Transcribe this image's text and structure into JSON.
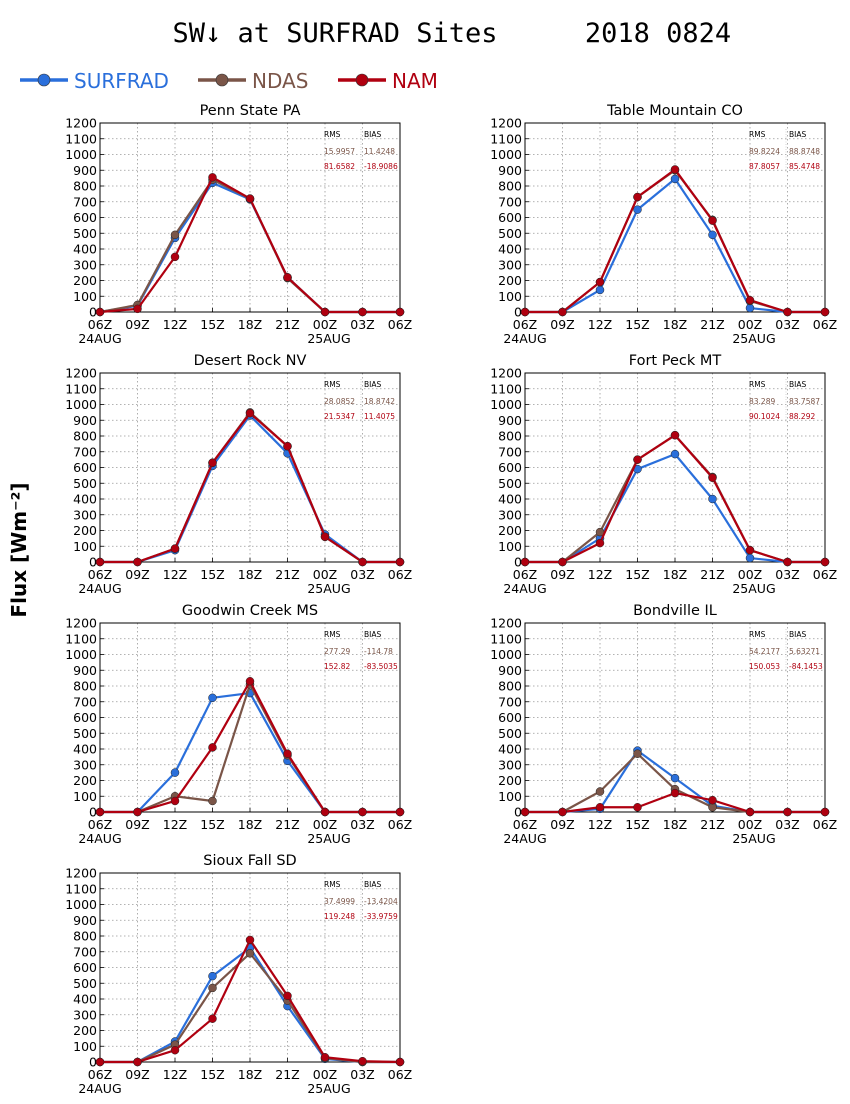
{
  "title": "SW↓ at SURFRAD Sites",
  "date": "2018 0824",
  "ylabel": "Flux [Wm⁻²]",
  "stats_headers": {
    "rms": "RMS",
    "bias": "BIAS"
  },
  "legend": [
    {
      "name": "SURFRAD",
      "color": "#2a6fdb"
    },
    {
      "name": "NDAS",
      "color": "#7a5548"
    },
    {
      "name": "NAM",
      "color": "#b00010"
    }
  ],
  "x_ticks": [
    "06Z",
    "09Z",
    "12Z",
    "15Z",
    "18Z",
    "21Z",
    "00Z",
    "03Z",
    "06Z"
  ],
  "date_labels": {
    "start": "24AUG",
    "mid": "25AUG"
  },
  "chart_data": [
    {
      "type": "line",
      "title": "Penn State PA",
      "ylim": [
        0,
        1200
      ],
      "yticks_step": 100,
      "stats": {
        "ndas": [
          "15.9957",
          "11.4248"
        ],
        "nam": [
          "81.6582",
          "-18.9086"
        ]
      },
      "series": [
        {
          "name": "SURFRAD",
          "values": [
            0,
            40,
            470,
            820,
            715,
            220,
            0,
            0,
            0
          ]
        },
        {
          "name": "NDAS",
          "values": [
            0,
            45,
            490,
            840,
            720,
            215,
            0,
            0,
            0
          ]
        },
        {
          "name": "NAM",
          "values": [
            0,
            20,
            350,
            855,
            720,
            220,
            0,
            0,
            0
          ]
        }
      ]
    },
    {
      "type": "line",
      "title": "Table Mountain CO",
      "ylim": [
        0,
        1200
      ],
      "yticks_step": 100,
      "stats": {
        "ndas": [
          "89.8224",
          "88.8748"
        ],
        "nam": [
          "87.8057",
          "85.4748"
        ]
      },
      "series": [
        {
          "name": "SURFRAD",
          "values": [
            0,
            0,
            140,
            650,
            845,
            490,
            25,
            0,
            0
          ]
        },
        {
          "name": "NDAS",
          "values": [
            0,
            0,
            190,
            730,
            900,
            585,
            70,
            0,
            0
          ]
        },
        {
          "name": "NAM",
          "values": [
            0,
            0,
            190,
            730,
            905,
            580,
            75,
            0,
            0
          ]
        }
      ]
    },
    {
      "type": "line",
      "title": "Desert Rock NV",
      "ylim": [
        0,
        1200
      ],
      "yticks_step": 100,
      "stats": {
        "ndas": [
          "28.0852",
          "18.8742"
        ],
        "nam": [
          "21.5347",
          "11.4075"
        ]
      },
      "series": [
        {
          "name": "SURFRAD",
          "values": [
            0,
            0,
            75,
            610,
            930,
            690,
            175,
            0,
            0
          ]
        },
        {
          "name": "NDAS",
          "values": [
            0,
            0,
            85,
            630,
            950,
            735,
            160,
            0,
            0
          ]
        },
        {
          "name": "NAM",
          "values": [
            0,
            0,
            85,
            630,
            945,
            735,
            160,
            0,
            0
          ]
        }
      ]
    },
    {
      "type": "line",
      "title": "Fort Peck MT",
      "ylim": [
        0,
        1200
      ],
      "yticks_step": 100,
      "stats": {
        "ndas": [
          "83.289",
          "83.7587"
        ],
        "nam": [
          "90.1024",
          "88.292"
        ]
      },
      "series": [
        {
          "name": "SURFRAD",
          "values": [
            0,
            0,
            150,
            590,
            685,
            400,
            25,
            0,
            0
          ]
        },
        {
          "name": "NDAS",
          "values": [
            0,
            0,
            190,
            650,
            805,
            540,
            75,
            0,
            0
          ]
        },
        {
          "name": "NAM",
          "values": [
            0,
            0,
            120,
            650,
            805,
            535,
            75,
            0,
            0
          ]
        }
      ]
    },
    {
      "type": "line",
      "title": "Goodwin Creek MS",
      "ylim": [
        0,
        1200
      ],
      "yticks_step": 100,
      "stats": {
        "ndas": [
          "277.29",
          "-114.78"
        ],
        "nam": [
          "152.82",
          "-83.5035"
        ]
      },
      "series": [
        {
          "name": "SURFRAD",
          "values": [
            0,
            0,
            250,
            725,
            755,
            325,
            0,
            0,
            0
          ]
        },
        {
          "name": "NDAS",
          "values": [
            0,
            0,
            100,
            70,
            810,
            360,
            0,
            0,
            0
          ]
        },
        {
          "name": "NAM",
          "values": [
            0,
            0,
            70,
            410,
            830,
            370,
            0,
            0,
            0
          ]
        }
      ]
    },
    {
      "type": "line",
      "title": "Bondville IL",
      "ylim": [
        0,
        1200
      ],
      "yticks_step": 100,
      "stats": {
        "ndas": [
          "54.2177",
          "5.63271"
        ],
        "nam": [
          "150.053",
          "-84.1453"
        ]
      },
      "series": [
        {
          "name": "SURFRAD",
          "values": [
            0,
            0,
            20,
            390,
            215,
            40,
            0,
            0,
            0
          ]
        },
        {
          "name": "NDAS",
          "values": [
            0,
            0,
            130,
            370,
            145,
            30,
            0,
            0,
            0
          ]
        },
        {
          "name": "NAM",
          "values": [
            0,
            0,
            30,
            30,
            120,
            75,
            0,
            0,
            0
          ]
        }
      ]
    },
    {
      "type": "line",
      "title": "Sioux Fall SD",
      "ylim": [
        0,
        1200
      ],
      "yticks_step": 100,
      "stats": {
        "ndas": [
          "37.4999",
          "-13.4204"
        ],
        "nam": [
          "119.248",
          "-33.9759"
        ]
      },
      "series": [
        {
          "name": "SURFRAD",
          "values": [
            0,
            0,
            130,
            545,
            725,
            355,
            20,
            0,
            0
          ]
        },
        {
          "name": "NDAS",
          "values": [
            0,
            0,
            110,
            470,
            690,
            390,
            25,
            0,
            0
          ]
        },
        {
          "name": "NAM",
          "values": [
            0,
            0,
            75,
            275,
            775,
            420,
            30,
            5,
            0
          ]
        }
      ]
    }
  ]
}
